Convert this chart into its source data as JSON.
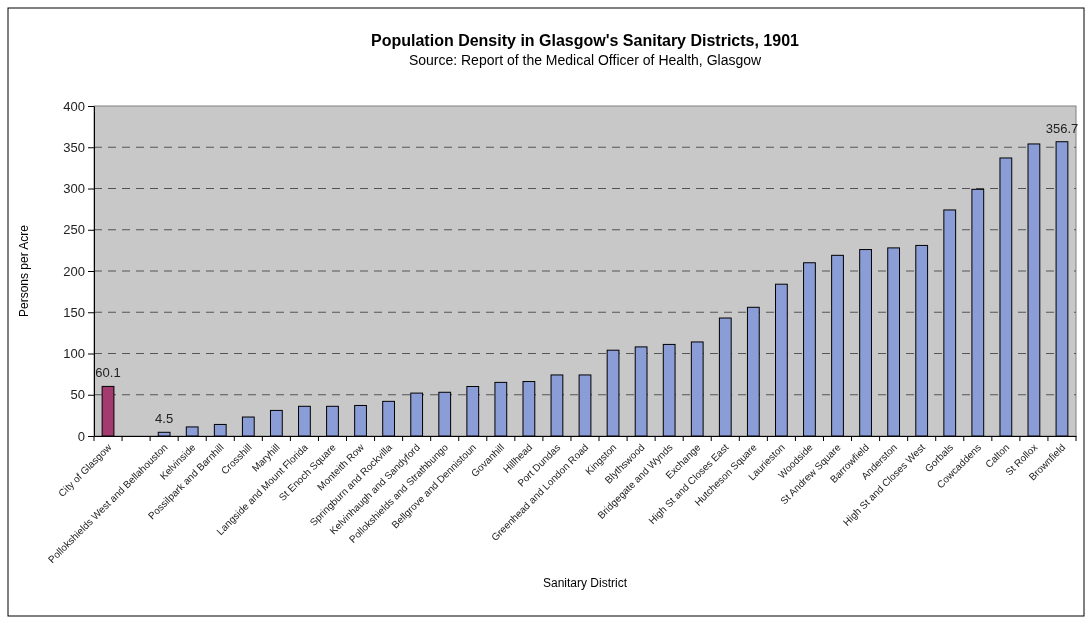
{
  "chart_data": {
    "type": "bar",
    "title": "Population Density in Glasgow's Sanitary Districts, 1901",
    "subtitle": "Source: Report of the Medical Officer of Health, Glasgow",
    "xlabel": "Sanitary District",
    "ylabel": "Persons per Acre",
    "categories": [
      "City of Glasgow",
      null,
      "Pollokshields West and Bellahouston",
      "Kelvinside",
      "Possilpark and Barnhill",
      "Crosshill",
      "Maryhill",
      "Langside and Mount Florida",
      "St Enoch Square",
      "Monteith Row",
      "Springburn and Rockvilla",
      "Kelvinhaugh and Sandyford",
      "Pollokshields and Strathbungo",
      "Bellgrove and Dennistoun",
      "Govanhill",
      "Hillhead",
      "Port Dundas",
      "Greenhead and London Road",
      "Kingston",
      "Blythswood",
      "Bridgegate and Wynds",
      "Exchange",
      "High St and Closes East",
      "Hutcheson Square",
      "Laurieston",
      "Woodside",
      "St Andrew Square",
      "Barrowfield",
      "Anderston",
      "High St and Closes West",
      "Gorbals",
      "Cowcaddens",
      "Calton",
      "St Rollox",
      "Brownfield"
    ],
    "values": [
      60.1,
      null,
      4.5,
      11,
      14,
      23,
      31,
      36,
      36,
      37,
      42,
      52,
      53,
      60,
      65,
      66,
      74,
      74,
      104,
      108,
      111,
      114,
      143,
      156,
      184,
      210,
      219,
      226,
      228,
      231,
      274,
      299,
      337,
      354,
      356.7
    ],
    "value_labels": [
      "60.1",
      null,
      "4.5",
      null,
      null,
      null,
      null,
      null,
      null,
      null,
      null,
      null,
      null,
      null,
      null,
      null,
      null,
      null,
      null,
      null,
      null,
      null,
      null,
      null,
      null,
      null,
      null,
      null,
      null,
      null,
      null,
      null,
      null,
      null,
      "356.7"
    ],
    "colors": [
      "#a33a70",
      null,
      "#8b9dd6",
      "#8b9dd6",
      "#8b9dd6",
      "#8b9dd6",
      "#8b9dd6",
      "#8b9dd6",
      "#8b9dd6",
      "#8b9dd6",
      "#8b9dd6",
      "#8b9dd6",
      "#8b9dd6",
      "#8b9dd6",
      "#8b9dd6",
      "#8b9dd6",
      "#8b9dd6",
      "#8b9dd6",
      "#8b9dd6",
      "#8b9dd6",
      "#8b9dd6",
      "#8b9dd6",
      "#8b9dd6",
      "#8b9dd6",
      "#8b9dd6",
      "#8b9dd6",
      "#8b9dd6",
      "#8b9dd6",
      "#8b9dd6",
      "#8b9dd6",
      "#8b9dd6",
      "#8b9dd6",
      "#8b9dd6",
      "#8b9dd6",
      "#8b9dd6"
    ],
    "ylim": [
      0,
      400
    ],
    "yticks": [
      0,
      50,
      100,
      150,
      200,
      250,
      300,
      350,
      400
    ],
    "grid": "y"
  }
}
